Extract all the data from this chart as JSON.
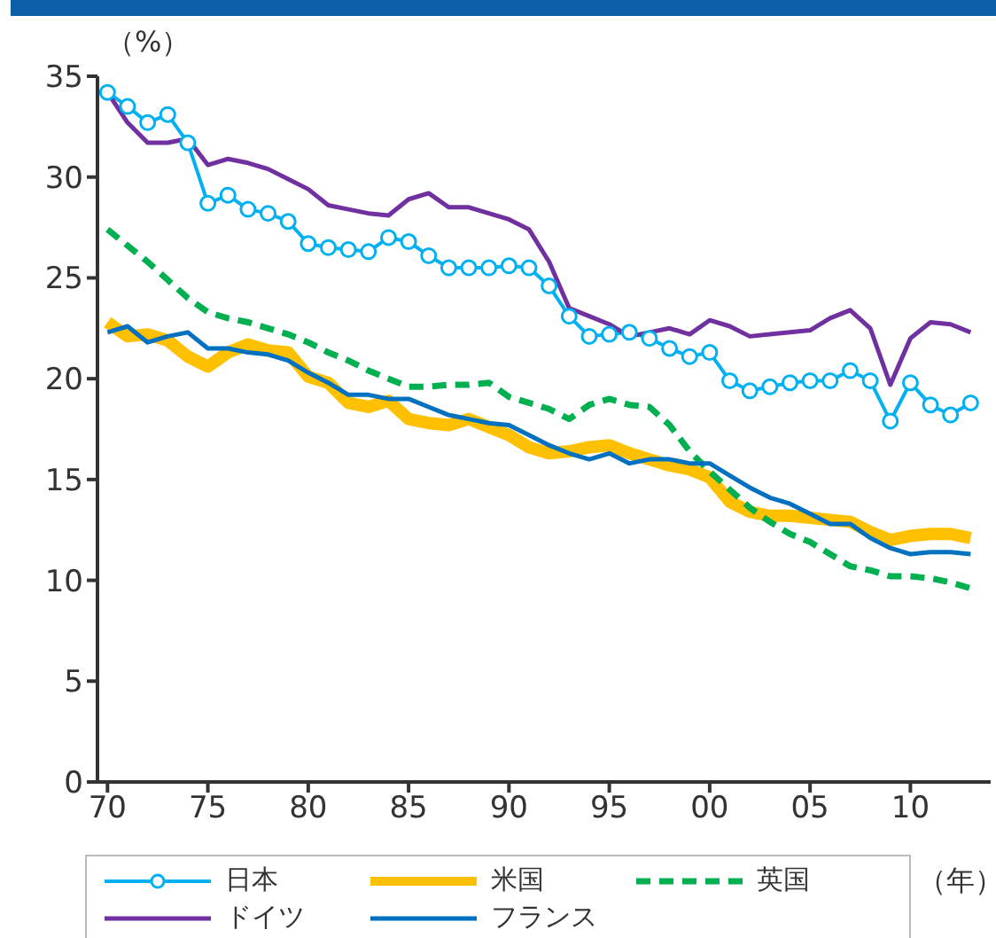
{
  "chart_data": {
    "type": "line",
    "ylabel": "（%）",
    "xlabel": "（年）",
    "x": [
      1970,
      1971,
      1972,
      1973,
      1974,
      1975,
      1976,
      1977,
      1978,
      1979,
      1980,
      1981,
      1982,
      1983,
      1984,
      1985,
      1986,
      1987,
      1988,
      1989,
      1990,
      1991,
      1992,
      1993,
      1994,
      1995,
      1996,
      1997,
      1998,
      1999,
      2000,
      2001,
      2002,
      2003,
      2004,
      2005,
      2006,
      2007,
      2008,
      2009,
      2010,
      2011,
      2012,
      2013
    ],
    "xlim": [
      1969.5,
      2014
    ],
    "xticks": [
      {
        "value": 1970,
        "label": "70"
      },
      {
        "value": 1975,
        "label": "75"
      },
      {
        "value": 1980,
        "label": "80"
      },
      {
        "value": 1985,
        "label": "85"
      },
      {
        "value": 1990,
        "label": "90"
      },
      {
        "value": 1995,
        "label": "95"
      },
      {
        "value": 2000,
        "label": "00"
      },
      {
        "value": 2005,
        "label": "05"
      },
      {
        "value": 2010,
        "label": "10"
      }
    ],
    "ylim": [
      0,
      35
    ],
    "yticks": [
      0,
      5,
      10,
      15,
      20,
      25,
      30,
      35
    ],
    "grid": false,
    "legend": "bottom",
    "series": [
      {
        "name": "日本",
        "color": "#00b0f0",
        "marker": "circle",
        "values": [
          34.2,
          33.5,
          32.7,
          33.1,
          31.7,
          28.7,
          29.1,
          28.4,
          28.2,
          27.8,
          26.7,
          26.5,
          26.4,
          26.3,
          27.0,
          26.8,
          26.1,
          25.5,
          25.5,
          25.5,
          25.6,
          25.5,
          24.6,
          23.1,
          22.1,
          22.2,
          22.3,
          22.0,
          21.5,
          21.1,
          21.3,
          19.9,
          19.4,
          19.6,
          19.8,
          19.9,
          19.9,
          20.4,
          19.9,
          17.9,
          19.8,
          18.7,
          18.2,
          18.8
        ]
      },
      {
        "name": "米国",
        "color": "#ffc000",
        "values": [
          22.8,
          22.1,
          22.2,
          21.9,
          21.1,
          20.6,
          21.3,
          21.7,
          21.4,
          21.3,
          20.1,
          19.8,
          18.8,
          18.6,
          18.9,
          18.0,
          17.8,
          17.7,
          18.0,
          17.6,
          17.2,
          16.6,
          16.3,
          16.4,
          16.6,
          16.7,
          16.3,
          16.0,
          15.7,
          15.5,
          15.1,
          13.9,
          13.4,
          13.2,
          13.2,
          13.1,
          13.0,
          12.9,
          12.4,
          12.0,
          12.2,
          12.3,
          12.3,
          12.1
        ]
      },
      {
        "name": "英国",
        "color": "#00b050",
        "line_style": "dashed",
        "values": [
          27.4,
          26.6,
          25.8,
          24.9,
          24.0,
          23.3,
          23.0,
          22.8,
          22.5,
          22.2,
          21.8,
          21.3,
          20.9,
          20.4,
          20.0,
          19.6,
          19.6,
          19.7,
          19.7,
          19.8,
          19.1,
          18.8,
          18.5,
          18.0,
          18.7,
          19.0,
          18.7,
          18.6,
          17.7,
          16.4,
          15.4,
          14.5,
          13.6,
          12.9,
          12.3,
          11.9,
          11.3,
          10.7,
          10.5,
          10.2,
          10.2,
          10.1,
          9.9,
          9.6
        ]
      },
      {
        "name": "ドイツ",
        "color": "#7030a0",
        "values": [
          34.2,
          32.7,
          31.7,
          31.7,
          31.9,
          30.6,
          30.9,
          30.7,
          30.4,
          29.9,
          29.4,
          28.6,
          28.4,
          28.2,
          28.1,
          28.9,
          29.2,
          28.5,
          28.5,
          28.2,
          27.9,
          27.4,
          25.8,
          23.5,
          23.1,
          22.7,
          22.1,
          22.3,
          22.5,
          22.2,
          22.9,
          22.6,
          22.1,
          22.2,
          22.3,
          22.4,
          23.0,
          23.4,
          22.5,
          19.7,
          22.0,
          22.8,
          22.7,
          22.3
        ]
      },
      {
        "name": "フランス",
        "color": "#0070c0",
        "values": [
          22.3,
          22.6,
          21.8,
          22.1,
          22.3,
          21.5,
          21.5,
          21.3,
          21.2,
          20.9,
          20.3,
          19.8,
          19.2,
          19.2,
          19.0,
          19.0,
          18.6,
          18.2,
          18.0,
          17.8,
          17.7,
          17.2,
          16.7,
          16.3,
          16.0,
          16.3,
          15.8,
          16.0,
          16.0,
          15.8,
          15.8,
          15.2,
          14.6,
          14.1,
          13.8,
          13.3,
          12.8,
          12.8,
          12.1,
          11.6,
          11.3,
          11.4,
          11.4,
          11.3
        ]
      }
    ]
  }
}
